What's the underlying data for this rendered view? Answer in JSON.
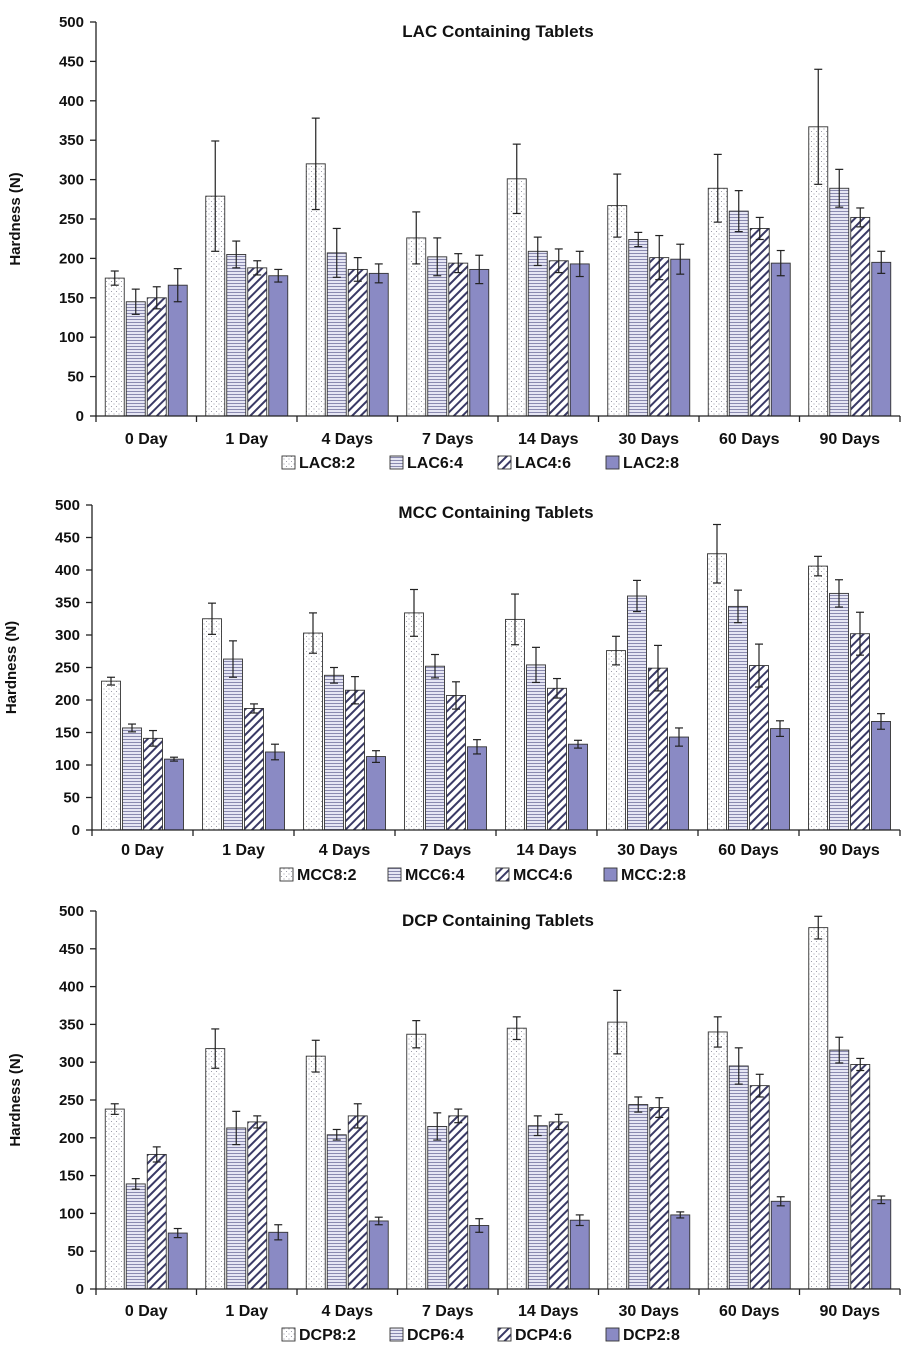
{
  "chart_data": [
    {
      "type": "bar",
      "title": "LAC Containing Tablets",
      "ylabel": "Hardness (N)",
      "ylim": [
        0,
        500
      ],
      "yticks": [
        "0",
        "50",
        "100",
        "150",
        "200",
        "250",
        "300",
        "350",
        "400",
        "450",
        "500"
      ],
      "categories": [
        "0 Day",
        "1 Day",
        "4 Days",
        "7 Days",
        "14 Days",
        "30 Days",
        "60 Days",
        "90 Days"
      ],
      "legend_position": "bottom",
      "series": [
        {
          "name": "LAC8:2",
          "values": [
            175,
            279,
            320,
            226,
            301,
            267,
            289,
            367
          ],
          "errors": [
            9,
            70,
            58,
            33,
            44,
            40,
            43,
            73
          ]
        },
        {
          "name": "LAC6:4",
          "values": [
            145,
            205,
            207,
            202,
            209,
            224,
            260,
            289
          ],
          "errors": [
            16,
            17,
            31,
            24,
            18,
            9,
            26,
            24
          ]
        },
        {
          "name": "LAC4:6",
          "values": [
            150,
            188,
            186,
            194,
            197,
            201,
            238,
            252
          ],
          "errors": [
            14,
            9,
            15,
            12,
            15,
            28,
            14,
            12
          ]
        },
        {
          "name": "LAC2:8",
          "values": [
            166,
            178,
            181,
            186,
            193,
            199,
            194,
            195
          ],
          "errors": [
            21,
            8,
            12,
            18,
            16,
            19,
            16,
            14
          ]
        }
      ]
    },
    {
      "type": "bar",
      "title": "MCC Containing Tablets",
      "ylabel": "Hardness (N)",
      "ylim": [
        0,
        500
      ],
      "yticks": [
        "0",
        "50",
        "100",
        "150",
        "200",
        "250",
        "300",
        "350",
        "400",
        "450",
        "500"
      ],
      "categories": [
        "0 Day",
        "1 Day",
        "4 Days",
        "7 Days",
        "14 Days",
        "30 Days",
        "60 Days",
        "90 Days"
      ],
      "legend_position": "bottom",
      "series": [
        {
          "name": "MCC8:2",
          "values": [
            229,
            325,
            303,
            334,
            324,
            276,
            425,
            406
          ],
          "errors": [
            6,
            24,
            31,
            36,
            39,
            22,
            45,
            15
          ]
        },
        {
          "name": "MCC6:4",
          "values": [
            157,
            263,
            238,
            252,
            254,
            360,
            344,
            364
          ],
          "errors": [
            6,
            28,
            12,
            18,
            27,
            24,
            25,
            21
          ]
        },
        {
          "name": "MCC4:6",
          "values": [
            141,
            187,
            215,
            207,
            218,
            249,
            253,
            302
          ],
          "errors": [
            12,
            7,
            21,
            21,
            15,
            35,
            33,
            33
          ]
        },
        {
          "name": "MCC:2:8",
          "values": [
            109,
            120,
            113,
            128,
            132,
            143,
            156,
            167
          ],
          "errors": [
            3,
            12,
            9,
            11,
            6,
            14,
            12,
            12
          ]
        }
      ]
    },
    {
      "type": "bar",
      "title": "DCP Containing Tablets",
      "ylabel": "Hardness (N)",
      "ylim": [
        0,
        500
      ],
      "yticks": [
        "0",
        "50",
        "100",
        "150",
        "200",
        "250",
        "300",
        "350",
        "400",
        "450",
        "500"
      ],
      "categories": [
        "0 Day",
        "1 Day",
        "4 Days",
        "7 Days",
        "14 Days",
        "30 Days",
        "60 Days",
        "90 Days"
      ],
      "legend_position": "bottom",
      "series": [
        {
          "name": "DCP8:2",
          "values": [
            238,
            318,
            308,
            337,
            345,
            353,
            340,
            478
          ],
          "errors": [
            7,
            26,
            21,
            18,
            15,
            42,
            20,
            15
          ]
        },
        {
          "name": "DCP6:4",
          "values": [
            139,
            213,
            204,
            215,
            216,
            244,
            295,
            316
          ],
          "errors": [
            7,
            22,
            7,
            18,
            13,
            10,
            24,
            17
          ]
        },
        {
          "name": "DCP4:6",
          "values": [
            178,
            221,
            229,
            229,
            221,
            240,
            269,
            297
          ],
          "errors": [
            10,
            8,
            16,
            9,
            10,
            13,
            15,
            8
          ]
        },
        {
          "name": "DCP2:8",
          "values": [
            74,
            75,
            90,
            84,
            91,
            98,
            116,
            118
          ],
          "errors": [
            6,
            10,
            5,
            9,
            7,
            4,
            6,
            5
          ]
        }
      ]
    }
  ]
}
